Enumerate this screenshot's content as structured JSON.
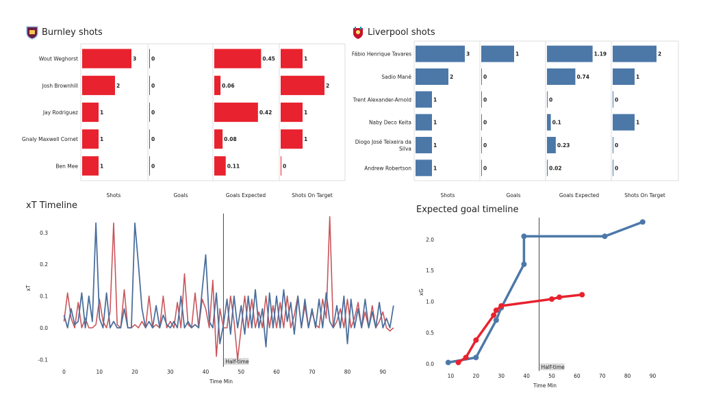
{
  "colors": {
    "burnley": "#e8222e",
    "liverpool": "#4c78a8",
    "burnley_line": "#c9545a",
    "liverpool_line": "#4a6f9c",
    "grid": "#dddddd",
    "axis": "#555555",
    "halftime": "#444444"
  },
  "titles": {
    "burnley": "Burnley shots",
    "liverpool": "Liverpool shots",
    "xt": "xT Timeline",
    "xg": "Expected goal timeline"
  },
  "icons": {
    "burnley_crest": "burnley-crest-icon",
    "liverpool_crest": "liverpool-crest-icon"
  },
  "chart_data": [
    {
      "type": "bar",
      "id": "burnley_shots",
      "title": "Burnley shots",
      "categories": [
        "Wout Weghorst",
        "Josh Brownhill",
        "Jay Rodriguez",
        "Gnaly Maxwell Cornet",
        "Ben Mee"
      ],
      "columns": [
        "Shots",
        "Goals",
        "Goals Expected",
        "Shots On Target"
      ],
      "series": [
        {
          "name": "Shots",
          "values": [
            3,
            2,
            1,
            1,
            1
          ],
          "labels": [
            "3",
            "2",
            "1",
            "1",
            "1"
          ]
        },
        {
          "name": "Goals",
          "values": [
            0,
            0,
            0,
            0,
            0
          ],
          "labels": [
            "0",
            "0",
            "0",
            "0",
            "0"
          ]
        },
        {
          "name": "Goals Expected",
          "values": [
            0.45,
            0.06,
            0.42,
            0.08,
            0.11
          ],
          "labels": [
            "0.45",
            "0.06",
            "0.42",
            "0.08",
            "0.11"
          ]
        },
        {
          "name": "Shots On Target",
          "values": [
            1,
            2,
            1,
            1,
            0
          ],
          "labels": [
            "1",
            "2",
            "1",
            "1",
            "0"
          ]
        }
      ]
    },
    {
      "type": "bar",
      "id": "liverpool_shots",
      "title": "Liverpool shots",
      "categories": [
        "Fábio Henrique Tavares",
        "Sadio Mané",
        "Trent Alexander-Arnold",
        "Naby Deco Keita",
        "Diogo José Teixeira da Silva",
        "Andrew Robertson"
      ],
      "columns": [
        "Shots",
        "Goals",
        "Goals Expected",
        "Shots On Target"
      ],
      "series": [
        {
          "name": "Shots",
          "values": [
            3,
            2,
            1,
            1,
            1,
            1
          ],
          "labels": [
            "3",
            "2",
            "1",
            "1",
            "1",
            "1"
          ]
        },
        {
          "name": "Goals",
          "values": [
            1,
            0,
            0,
            0,
            0,
            0
          ],
          "labels": [
            "1",
            "0",
            "0",
            "0",
            "0",
            "0"
          ]
        },
        {
          "name": "Goals Expected",
          "values": [
            1.19,
            0.74,
            0,
            0.1,
            0.23,
            0.02
          ],
          "labels": [
            "1.19",
            "0.74",
            "0",
            "0.1",
            "0.23",
            "0.02"
          ]
        },
        {
          "name": "Shots On Target",
          "values": [
            2,
            1,
            0,
            1,
            0,
            0
          ],
          "labels": [
            "2",
            "1",
            "0",
            "1",
            "0",
            "0"
          ]
        }
      ]
    },
    {
      "type": "line",
      "id": "xt_timeline",
      "title": "xT Timeline",
      "xlabel": "Time Min",
      "ylabel": "xT",
      "xlim": [
        -3,
        94
      ],
      "ylim": [
        -0.11,
        0.36
      ],
      "xticks": [
        "0",
        "10",
        "20",
        "30",
        "40",
        "50",
        "60",
        "70",
        "80",
        "90"
      ],
      "yticks": [
        "-0.1",
        "0.0",
        "0.1",
        "0.2",
        "0.3"
      ],
      "annotation": {
        "x": 45,
        "text": "Half-time"
      },
      "series": [
        {
          "team": "burnley",
          "x": [
            0,
            1,
            2,
            3,
            4,
            5,
            6,
            7,
            8,
            9,
            10,
            11,
            12,
            13,
            14,
            15,
            16,
            17,
            18,
            19,
            20,
            21,
            22,
            23,
            24,
            25,
            26,
            27,
            28,
            29,
            30,
            31,
            32,
            33,
            34,
            35,
            36,
            37,
            38,
            39,
            40,
            41,
            42,
            43,
            44,
            45,
            46,
            47,
            48,
            49,
            50,
            51,
            52,
            53,
            54,
            55,
            56,
            57,
            58,
            59,
            60,
            61,
            62,
            63,
            64,
            65,
            66,
            67,
            68,
            69,
            70,
            71,
            72,
            73,
            74,
            75,
            76,
            77,
            78,
            79,
            80,
            81,
            82,
            83,
            84,
            85,
            86,
            87,
            88,
            89,
            90,
            91,
            92,
            93
          ],
          "y": [
            0.02,
            0.11,
            0.03,
            0.0,
            0.08,
            0.0,
            0.03,
            0.0,
            0.0,
            0.01,
            0.09,
            0.02,
            0.0,
            0.05,
            0.33,
            0.01,
            0.0,
            0.12,
            0.0,
            0.0,
            0.01,
            0.0,
            0.02,
            0.0,
            0.1,
            0.0,
            0.01,
            0.0,
            0.1,
            0.0,
            0.02,
            0.0,
            0.08,
            0.0,
            0.17,
            0.01,
            0.0,
            0.11,
            0.0,
            0.09,
            0.06,
            0.0,
            0.15,
            -0.09,
            0.06,
            0.0,
            0.0,
            0.1,
            0.02,
            -0.1,
            0.0,
            0.1,
            0.0,
            0.09,
            0.0,
            0.05,
            0.0,
            0.1,
            0.0,
            0.07,
            0.0,
            0.08,
            0.0,
            0.1,
            0.0,
            0.04,
            0.1,
            0.0,
            0.07,
            0.0,
            0.05,
            0.01,
            0.0,
            0.09,
            0.03,
            0.35,
            0.0,
            0.02,
            0.06,
            0.0,
            0.09,
            0.0,
            0.03,
            0.08,
            0.0,
            0.05,
            0.0,
            0.07,
            0.0,
            0.02,
            0.05,
            0.0,
            -0.01,
            0.0
          ]
        },
        {
          "team": "liverpool",
          "x": [
            0,
            1,
            2,
            3,
            4,
            5,
            6,
            7,
            8,
            9,
            10,
            11,
            12,
            13,
            14,
            15,
            16,
            17,
            18,
            19,
            20,
            21,
            22,
            23,
            24,
            25,
            26,
            27,
            28,
            29,
            30,
            31,
            32,
            33,
            34,
            35,
            36,
            37,
            38,
            39,
            40,
            41,
            42,
            43,
            44,
            45,
            46,
            47,
            48,
            49,
            50,
            51,
            52,
            53,
            54,
            55,
            56,
            57,
            58,
            59,
            60,
            61,
            62,
            63,
            64,
            65,
            66,
            67,
            68,
            69,
            70,
            71,
            72,
            73,
            74,
            75,
            76,
            77,
            78,
            79,
            80,
            81,
            82,
            83,
            84,
            85,
            86,
            87,
            88,
            89,
            90,
            91,
            92,
            93
          ],
          "y": [
            0.04,
            0.0,
            0.06,
            0.01,
            0.02,
            0.11,
            0.0,
            0.1,
            0.02,
            0.33,
            0.03,
            0.0,
            0.11,
            0.0,
            0.02,
            0.0,
            0.0,
            0.06,
            0.0,
            0.0,
            0.33,
            0.2,
            0.06,
            0.0,
            0.02,
            0.0,
            0.07,
            0.0,
            0.04,
            0.01,
            0.0,
            0.02,
            0.0,
            0.1,
            0.0,
            0.02,
            0.0,
            0.01,
            0.0,
            0.12,
            0.23,
            0.02,
            0.0,
            0.11,
            -0.05,
            0.01,
            0.09,
            -0.02,
            0.1,
            0.0,
            0.07,
            -0.02,
            0.1,
            0.0,
            0.12,
            0.0,
            0.06,
            -0.06,
            0.11,
            0.0,
            0.1,
            0.0,
            0.12,
            0.02,
            0.08,
            -0.02,
            0.1,
            0.0,
            0.09,
            0.0,
            0.06,
            0.0,
            0.09,
            0.0,
            0.11,
            0.02,
            0.0,
            0.07,
            0.0,
            0.1,
            -0.05,
            0.09,
            0.0,
            0.06,
            0.0,
            0.09,
            0.0,
            0.05,
            0.0,
            0.08,
            0.0,
            0.03,
            0.0,
            0.07
          ]
        }
      ]
    },
    {
      "type": "line",
      "id": "xg_timeline",
      "title": "Expected goal timeline",
      "xlabel": "Time Min",
      "ylabel": "xG",
      "xlim": [
        5,
        95
      ],
      "ylim": [
        -0.05,
        2.35
      ],
      "xticks": [
        10,
        20,
        30,
        40,
        50,
        60,
        70,
        80,
        90
      ],
      "yticks": [
        0.0,
        0.5,
        1.0,
        1.5,
        2.0
      ],
      "annotation": {
        "x": 45,
        "text": "Half-time"
      },
      "series": [
        {
          "team": "liverpool",
          "x": [
            9,
            20,
            28,
            30,
            39,
            39,
            71,
            86
          ],
          "y": [
            0.02,
            0.1,
            0.7,
            0.9,
            1.6,
            2.05,
            2.05,
            2.28
          ]
        },
        {
          "team": "burnley",
          "x": [
            13,
            16,
            20,
            27,
            28,
            30,
            50,
            53,
            62
          ],
          "y": [
            0.02,
            0.1,
            0.38,
            0.78,
            0.86,
            0.93,
            1.04,
            1.07,
            1.11
          ]
        }
      ]
    }
  ]
}
